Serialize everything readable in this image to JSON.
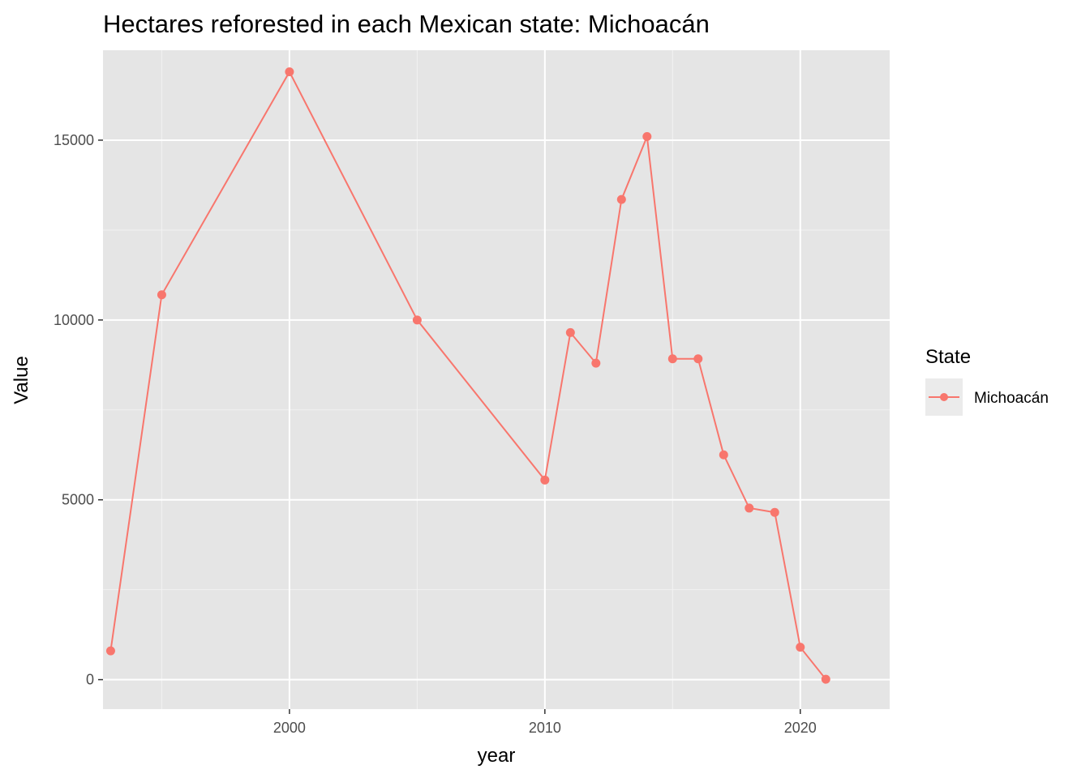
{
  "chart_data": {
    "type": "line",
    "title": "Hectares reforested in each Mexican state: Michoacán",
    "xlabel": "year",
    "ylabel": "Value",
    "xlim": [
      1992.7,
      2023.5
    ],
    "ylim": [
      -820,
      17500
    ],
    "x_ticks": [
      2000,
      2010,
      2020
    ],
    "x_minor_ticks": [
      1995,
      2005,
      2015
    ],
    "y_ticks": [
      0,
      5000,
      10000,
      15000
    ],
    "y_minor_ticks": [
      2500,
      7500,
      12500
    ],
    "grid": true,
    "legend": {
      "title": "State",
      "position": "right"
    },
    "series": [
      {
        "name": "Michoacán",
        "color": "#f8766d",
        "points": [
          {
            "x": 1993,
            "y": 800
          },
          {
            "x": 1995,
            "y": 10700
          },
          {
            "x": 2000,
            "y": 16900
          },
          {
            "x": 2005,
            "y": 10000
          },
          {
            "x": 2010,
            "y": 5550
          },
          {
            "x": 2011,
            "y": 9650
          },
          {
            "x": 2012,
            "y": 8800
          },
          {
            "x": 2013,
            "y": 13350
          },
          {
            "x": 2014,
            "y": 15100
          },
          {
            "x": 2015,
            "y": 8920
          },
          {
            "x": 2016,
            "y": 8920
          },
          {
            "x": 2017,
            "y": 6250
          },
          {
            "x": 2018,
            "y": 4770
          },
          {
            "x": 2019,
            "y": 4650
          },
          {
            "x": 2020,
            "y": 900
          },
          {
            "x": 2021,
            "y": 10
          }
        ]
      }
    ]
  }
}
